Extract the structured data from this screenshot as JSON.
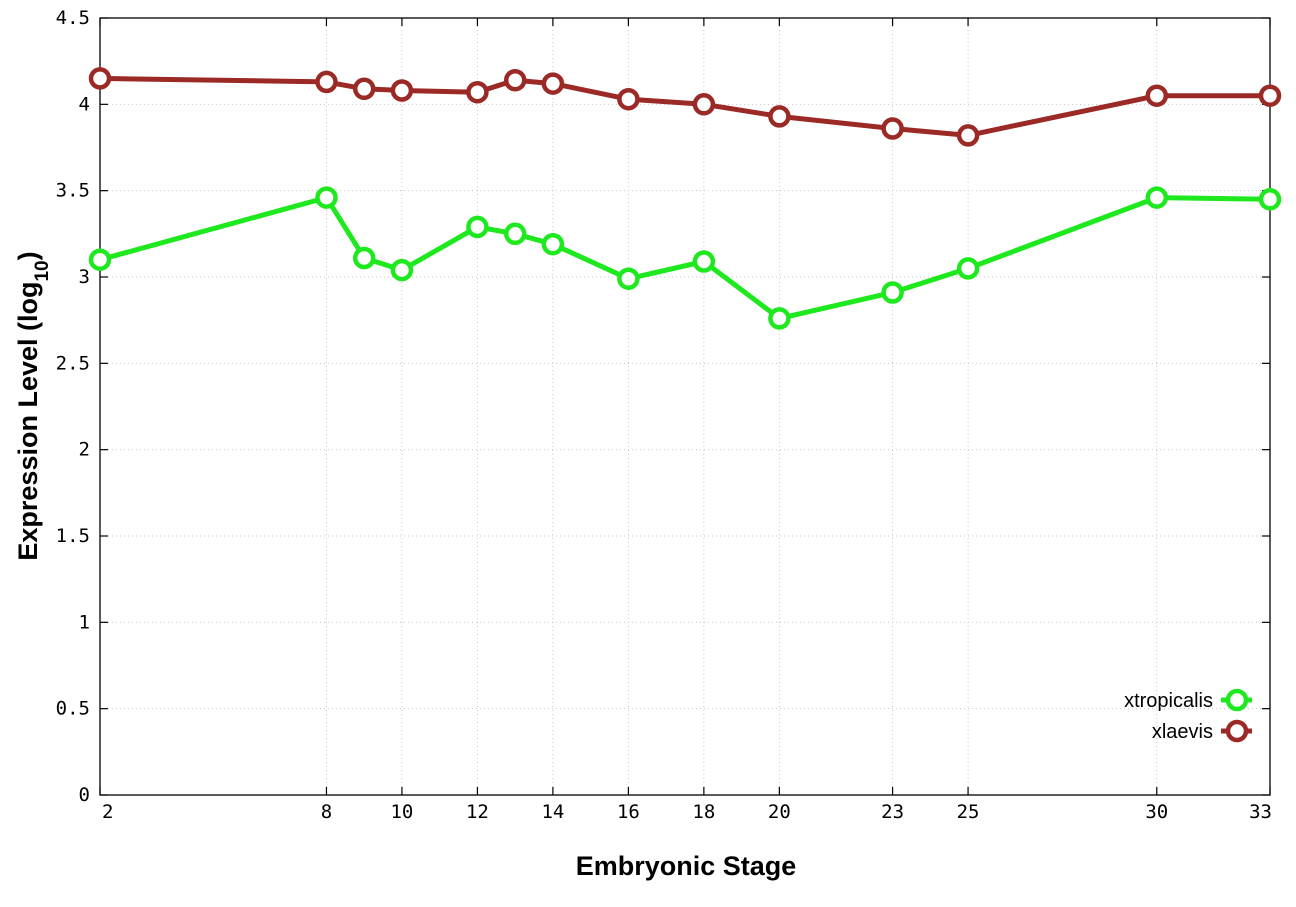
{
  "chart_data": {
    "type": "line",
    "title": "",
    "xlabel": "Embryonic Stage",
    "ylabel_main": "Expression Level (log",
    "ylabel_sub": "10",
    "ylabel_close": ")",
    "x": [
      2,
      8,
      9,
      10,
      12,
      13,
      14,
      16,
      18,
      20,
      23,
      25,
      30,
      33
    ],
    "x_ticks": [
      2,
      8,
      10,
      12,
      14,
      16,
      18,
      20,
      23,
      25,
      30,
      33
    ],
    "x_tick_labels": [
      "2",
      "8",
      "10",
      "12",
      "14",
      "16",
      "18",
      "20",
      "23",
      "25",
      "30",
      "33"
    ],
    "xlim": [
      2,
      33
    ],
    "ylim": [
      0,
      4.5
    ],
    "y_ticks": [
      0,
      0.5,
      1,
      1.5,
      2,
      2.5,
      3,
      3.5,
      4,
      4.5
    ],
    "y_tick_labels": [
      "0",
      "0.5",
      "1",
      "1.5",
      "2",
      "2.5",
      "3",
      "3.5",
      "4",
      "4.5"
    ],
    "grid": true,
    "legend_position": "bottom-right",
    "series": [
      {
        "name": "xtropicalis",
        "color": "#1ee81e",
        "marker": "open-circle",
        "values": [
          3.1,
          3.46,
          3.11,
          3.04,
          3.29,
          3.25,
          3.19,
          2.99,
          3.09,
          2.76,
          2.91,
          3.05,
          3.46,
          3.45
        ]
      },
      {
        "name": "xlaevis",
        "color": "#9b2a26",
        "marker": "open-circle",
        "values": [
          4.15,
          4.13,
          4.09,
          4.08,
          4.07,
          4.14,
          4.12,
          4.03,
          4.0,
          3.93,
          3.86,
          3.82,
          4.05,
          4.05
        ]
      }
    ]
  }
}
